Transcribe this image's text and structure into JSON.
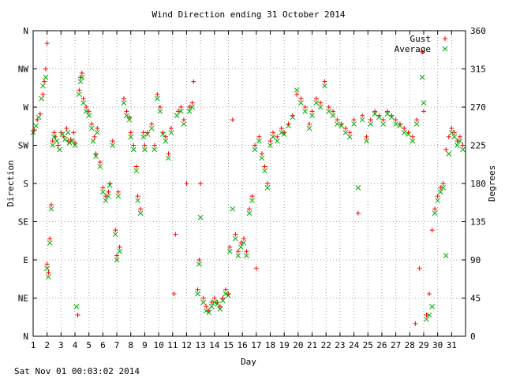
{
  "chart_data": {
    "type": "scatter",
    "title": "Wind Direction ending 31 October 2014",
    "xlabel": "Day",
    "ylabel_left": "Direction",
    "ylabel_right": "Degrees",
    "timestamp": "Sat Nov 01 00:03:02 2014",
    "xlim": [
      1,
      32
    ],
    "ylim": [
      0,
      360
    ],
    "grid": true,
    "legend_position": "top-right",
    "x_ticks": [
      "1",
      "2",
      "3",
      "4",
      "5",
      "6",
      "7",
      "8",
      "9",
      "10",
      "11",
      "12",
      "13",
      "14",
      "15",
      "16",
      "17",
      "18",
      "19",
      "20",
      "21",
      "22",
      "23",
      "24",
      "25",
      "26",
      "27",
      "28",
      "29",
      "30",
      "31"
    ],
    "y_ticks_left": [
      "N",
      "NE",
      "E",
      "SE",
      "S",
      "SW",
      "W",
      "NW",
      "N"
    ],
    "y_ticks_right": [
      "0",
      "45",
      "90",
      "135",
      "180",
      "225",
      "270",
      "315",
      "360"
    ],
    "series": [
      {
        "name": "Gust",
        "color": "#ff0000",
        "marker": "plus",
        "points": [
          [
            1.1,
            243
          ],
          [
            1.3,
            255
          ],
          [
            1.5,
            262
          ],
          [
            1.7,
            285
          ],
          [
            1.8,
            300
          ],
          [
            1.9,
            315
          ],
          [
            2.0,
            345
          ],
          [
            2.0,
            85
          ],
          [
            2.1,
            75
          ],
          [
            2.2,
            115
          ],
          [
            2.3,
            155
          ],
          [
            2.4,
            230
          ],
          [
            2.5,
            240
          ],
          [
            2.6,
            235
          ],
          [
            2.8,
            225
          ],
          [
            3.0,
            240
          ],
          [
            3.2,
            235
          ],
          [
            3.4,
            245
          ],
          [
            3.5,
            230
          ],
          [
            3.7,
            232
          ],
          [
            3.9,
            240
          ],
          [
            4.0,
            228
          ],
          [
            4.2,
            25
          ],
          [
            4.3,
            290
          ],
          [
            4.4,
            305
          ],
          [
            4.5,
            310
          ],
          [
            4.6,
            280
          ],
          [
            4.8,
            270
          ],
          [
            5.0,
            265
          ],
          [
            5.2,
            250
          ],
          [
            5.4,
            235
          ],
          [
            5.5,
            215
          ],
          [
            5.6,
            245
          ],
          [
            5.8,
            205
          ],
          [
            6.0,
            175
          ],
          [
            6.2,
            165
          ],
          [
            6.4,
            170
          ],
          [
            6.5,
            180
          ],
          [
            6.7,
            230
          ],
          [
            6.9,
            125
          ],
          [
            7.0,
            95
          ],
          [
            7.1,
            170
          ],
          [
            7.2,
            105
          ],
          [
            7.5,
            280
          ],
          [
            7.7,
            265
          ],
          [
            7.9,
            258
          ],
          [
            8.0,
            240
          ],
          [
            8.2,
            225
          ],
          [
            8.4,
            200
          ],
          [
            8.5,
            165
          ],
          [
            8.7,
            150
          ],
          [
            8.9,
            240
          ],
          [
            9.0,
            225
          ],
          [
            9.2,
            240
          ],
          [
            9.5,
            250
          ],
          [
            9.7,
            225
          ],
          [
            9.9,
            285
          ],
          [
            10.1,
            270
          ],
          [
            10.3,
            240
          ],
          [
            10.5,
            235
          ],
          [
            10.7,
            215
          ],
          [
            10.9,
            245
          ],
          [
            11.1,
            50
          ],
          [
            11.2,
            120
          ],
          [
            11.4,
            265
          ],
          [
            11.6,
            270
          ],
          [
            11.8,
            255
          ],
          [
            12.0,
            180
          ],
          [
            12.2,
            270
          ],
          [
            12.4,
            275
          ],
          [
            12.5,
            300
          ],
          [
            12.8,
            55
          ],
          [
            12.9,
            90
          ],
          [
            13.0,
            180
          ],
          [
            13.2,
            45
          ],
          [
            13.4,
            35
          ],
          [
            13.6,
            30
          ],
          [
            13.8,
            40
          ],
          [
            14.0,
            45
          ],
          [
            14.2,
            40
          ],
          [
            14.4,
            35
          ],
          [
            14.6,
            45
          ],
          [
            14.8,
            55
          ],
          [
            15.0,
            50
          ],
          [
            15.1,
            105
          ],
          [
            15.3,
            255
          ],
          [
            15.5,
            120
          ],
          [
            15.7,
            100
          ],
          [
            15.9,
            110
          ],
          [
            16.1,
            115
          ],
          [
            16.3,
            100
          ],
          [
            16.5,
            150
          ],
          [
            16.7,
            165
          ],
          [
            16.9,
            225
          ],
          [
            17.0,
            80
          ],
          [
            17.2,
            235
          ],
          [
            17.4,
            215
          ],
          [
            17.6,
            200
          ],
          [
            17.8,
            180
          ],
          [
            18.0,
            230
          ],
          [
            18.2,
            240
          ],
          [
            18.5,
            235
          ],
          [
            18.8,
            245
          ],
          [
            19.0,
            240
          ],
          [
            19.3,
            250
          ],
          [
            19.6,
            260
          ],
          [
            19.9,
            285
          ],
          [
            20.2,
            280
          ],
          [
            20.5,
            270
          ],
          [
            20.8,
            250
          ],
          [
            21.0,
            265
          ],
          [
            21.3,
            280
          ],
          [
            21.6,
            275
          ],
          [
            21.9,
            300
          ],
          [
            22.2,
            270
          ],
          [
            22.5,
            265
          ],
          [
            22.8,
            255
          ],
          [
            23.1,
            250
          ],
          [
            23.4,
            245
          ],
          [
            23.7,
            240
          ],
          [
            24.0,
            255
          ],
          [
            24.3,
            145
          ],
          [
            24.6,
            260
          ],
          [
            24.9,
            235
          ],
          [
            25.2,
            255
          ],
          [
            25.5,
            265
          ],
          [
            25.8,
            260
          ],
          [
            26.1,
            255
          ],
          [
            26.4,
            265
          ],
          [
            26.7,
            260
          ],
          [
            27.0,
            255
          ],
          [
            27.3,
            250
          ],
          [
            27.6,
            245
          ],
          [
            27.9,
            240
          ],
          [
            28.2,
            235
          ],
          [
            28.4,
            15
          ],
          [
            28.5,
            255
          ],
          [
            28.7,
            80
          ],
          [
            28.9,
            335
          ],
          [
            29.0,
            265
          ],
          [
            29.2,
            25
          ],
          [
            29.4,
            50
          ],
          [
            29.6,
            125
          ],
          [
            29.8,
            150
          ],
          [
            30.0,
            165
          ],
          [
            30.2,
            175
          ],
          [
            30.4,
            180
          ],
          [
            30.6,
            220
          ],
          [
            30.8,
            235
          ],
          [
            31.0,
            245
          ],
          [
            31.2,
            240
          ],
          [
            31.4,
            230
          ],
          [
            31.6,
            235
          ],
          [
            31.8,
            225
          ]
        ]
      },
      {
        "name": "Average",
        "color": "#00aa00",
        "marker": "cross",
        "points": [
          [
            1.0,
            240
          ],
          [
            1.2,
            248
          ],
          [
            1.4,
            258
          ],
          [
            1.6,
            280
          ],
          [
            1.7,
            295
          ],
          [
            1.9,
            305
          ],
          [
            2.0,
            80
          ],
          [
            2.1,
            70
          ],
          [
            2.2,
            110
          ],
          [
            2.3,
            150
          ],
          [
            2.4,
            225
          ],
          [
            2.5,
            235
          ],
          [
            2.7,
            230
          ],
          [
            2.9,
            220
          ],
          [
            3.1,
            238
          ],
          [
            3.3,
            232
          ],
          [
            3.5,
            240
          ],
          [
            3.6,
            228
          ],
          [
            3.8,
            230
          ],
          [
            4.0,
            225
          ],
          [
            4.1,
            35
          ],
          [
            4.3,
            285
          ],
          [
            4.4,
            300
          ],
          [
            4.5,
            305
          ],
          [
            4.6,
            275
          ],
          [
            4.8,
            265
          ],
          [
            5.0,
            260
          ],
          [
            5.2,
            245
          ],
          [
            5.3,
            230
          ],
          [
            5.5,
            212
          ],
          [
            5.6,
            240
          ],
          [
            5.8,
            200
          ],
          [
            6.0,
            170
          ],
          [
            6.2,
            160
          ],
          [
            6.4,
            165
          ],
          [
            6.5,
            178
          ],
          [
            6.7,
            225
          ],
          [
            6.9,
            120
          ],
          [
            7.0,
            90
          ],
          [
            7.1,
            165
          ],
          [
            7.2,
            100
          ],
          [
            7.5,
            275
          ],
          [
            7.7,
            260
          ],
          [
            7.9,
            255
          ],
          [
            8.0,
            235
          ],
          [
            8.2,
            220
          ],
          [
            8.4,
            195
          ],
          [
            8.5,
            160
          ],
          [
            8.7,
            145
          ],
          [
            8.9,
            235
          ],
          [
            9.0,
            220
          ],
          [
            9.2,
            238
          ],
          [
            9.5,
            245
          ],
          [
            9.7,
            220
          ],
          [
            9.9,
            280
          ],
          [
            10.1,
            265
          ],
          [
            10.3,
            238
          ],
          [
            10.5,
            230
          ],
          [
            10.7,
            210
          ],
          [
            10.9,
            240
          ],
          [
            11.3,
            260
          ],
          [
            11.6,
            265
          ],
          [
            11.8,
            250
          ],
          [
            12.2,
            265
          ],
          [
            12.4,
            270
          ],
          [
            12.8,
            50
          ],
          [
            12.9,
            85
          ],
          [
            13.0,
            140
          ],
          [
            13.2,
            40
          ],
          [
            13.4,
            30
          ],
          [
            13.6,
            28
          ],
          [
            13.8,
            35
          ],
          [
            14.0,
            40
          ],
          [
            14.2,
            38
          ],
          [
            14.4,
            32
          ],
          [
            14.6,
            42
          ],
          [
            14.8,
            50
          ],
          [
            15.0,
            48
          ],
          [
            15.1,
            100
          ],
          [
            15.3,
            150
          ],
          [
            15.5,
            115
          ],
          [
            15.7,
            95
          ],
          [
            15.9,
            105
          ],
          [
            16.1,
            110
          ],
          [
            16.3,
            95
          ],
          [
            16.5,
            145
          ],
          [
            16.7,
            160
          ],
          [
            16.9,
            220
          ],
          [
            17.2,
            230
          ],
          [
            17.4,
            210
          ],
          [
            17.6,
            195
          ],
          [
            17.8,
            175
          ],
          [
            18.0,
            225
          ],
          [
            18.2,
            235
          ],
          [
            18.5,
            230
          ],
          [
            18.8,
            240
          ],
          [
            19.0,
            238
          ],
          [
            19.3,
            248
          ],
          [
            19.6,
            258
          ],
          [
            19.9,
            290
          ],
          [
            20.2,
            275
          ],
          [
            20.5,
            265
          ],
          [
            20.8,
            245
          ],
          [
            21.0,
            260
          ],
          [
            21.3,
            275
          ],
          [
            21.6,
            270
          ],
          [
            21.9,
            295
          ],
          [
            22.2,
            265
          ],
          [
            22.5,
            260
          ],
          [
            22.8,
            250
          ],
          [
            23.1,
            248
          ],
          [
            23.4,
            240
          ],
          [
            23.7,
            235
          ],
          [
            24.0,
            250
          ],
          [
            24.3,
            175
          ],
          [
            24.6,
            255
          ],
          [
            24.9,
            230
          ],
          [
            25.2,
            250
          ],
          [
            25.5,
            262
          ],
          [
            25.8,
            258
          ],
          [
            26.1,
            250
          ],
          [
            26.4,
            262
          ],
          [
            26.7,
            258
          ],
          [
            27.0,
            250
          ],
          [
            27.3,
            248
          ],
          [
            27.6,
            240
          ],
          [
            27.9,
            238
          ],
          [
            28.2,
            230
          ],
          [
            28.5,
            250
          ],
          [
            28.9,
            305
          ],
          [
            29.0,
            275
          ],
          [
            29.2,
            20
          ],
          [
            29.4,
            25
          ],
          [
            29.6,
            35
          ],
          [
            29.8,
            145
          ],
          [
            30.0,
            160
          ],
          [
            30.2,
            170
          ],
          [
            30.4,
            175
          ],
          [
            30.6,
            95
          ],
          [
            30.8,
            215
          ],
          [
            31.0,
            240
          ],
          [
            31.2,
            235
          ],
          [
            31.4,
            225
          ],
          [
            31.6,
            230
          ],
          [
            31.8,
            220
          ]
        ]
      }
    ]
  }
}
